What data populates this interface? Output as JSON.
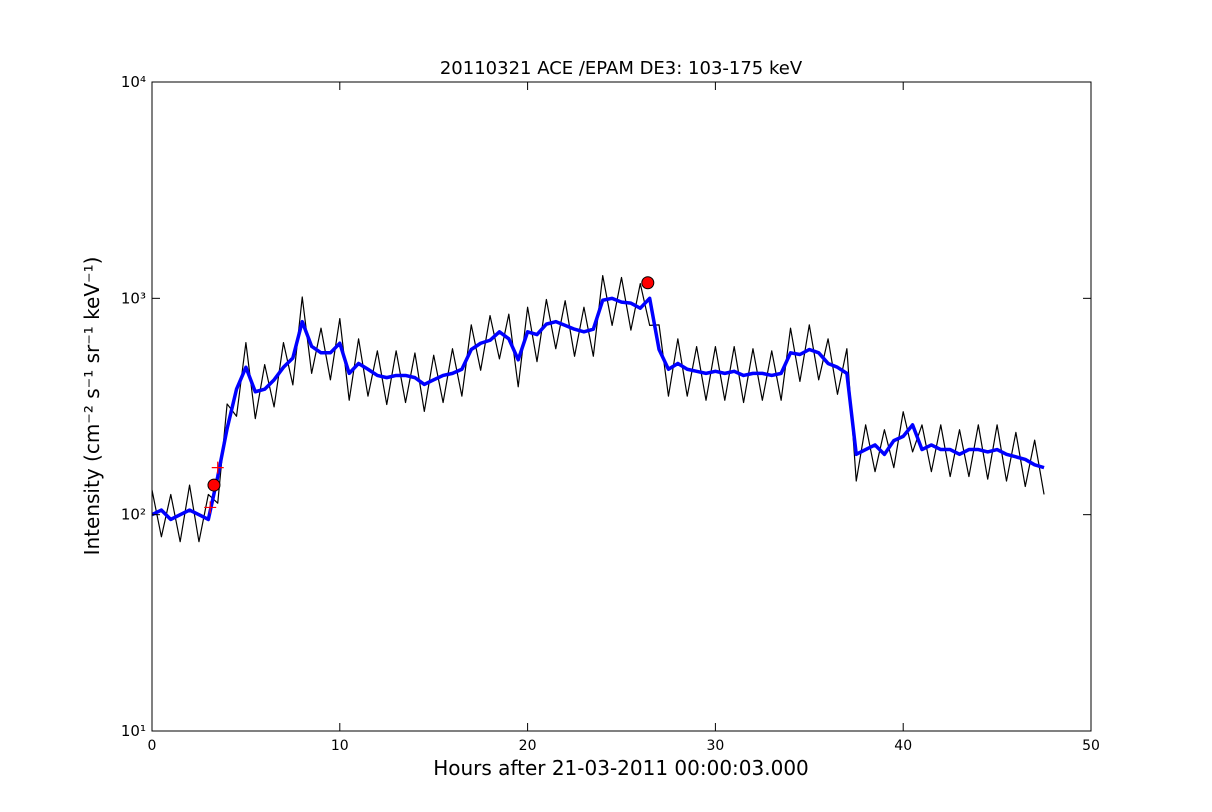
{
  "chart_data": {
    "type": "line",
    "title": "20110321 ACE /EPAM DE3: 103-175 keV",
    "xlabel": "Hours after 21-03-2011 00:00:03.000",
    "ylabel": "Intensity (cm⁻² s⁻¹ sr⁻¹ keV⁻¹)",
    "log_y": true,
    "xlim": [
      0,
      50
    ],
    "ylim": [
      10,
      10000
    ],
    "xticks": [
      0,
      10,
      20,
      30,
      40,
      50
    ],
    "yticks": [
      {
        "value": 10,
        "label": "10¹"
      },
      {
        "value": 100,
        "label": "10²"
      },
      {
        "value": 1000,
        "label": "10³"
      },
      {
        "value": 10000,
        "label": "10⁴"
      }
    ],
    "x": [
      0,
      0.5,
      1,
      1.5,
      2,
      2.5,
      3,
      3.5,
      4,
      4.5,
      5,
      5.5,
      6,
      6.5,
      7,
      7.5,
      8,
      8.5,
      9,
      9.5,
      10,
      10.5,
      11,
      11.5,
      12,
      12.5,
      13,
      13.5,
      14,
      14.5,
      15,
      15.5,
      16,
      16.5,
      17,
      17.5,
      18,
      18.5,
      19,
      19.5,
      20,
      20.5,
      21,
      21.5,
      22,
      22.5,
      23,
      23.5,
      24,
      24.5,
      25,
      25.5,
      26,
      26.5,
      27,
      27.5,
      28,
      28.5,
      29,
      29.5,
      30,
      30.5,
      31,
      31.5,
      32,
      32.5,
      33,
      33.5,
      34,
      34.5,
      35,
      35.5,
      36,
      36.5,
      37,
      37.5,
      38,
      38.5,
      39,
      39.5,
      40,
      40.5,
      41,
      41.5,
      42,
      42.5,
      43,
      43.5,
      44,
      44.5,
      45,
      45.5,
      46,
      46.5,
      47,
      47.5
    ],
    "series": [
      {
        "color": "#000000",
        "width": 1.2,
        "values": [
          130,
          79,
          124,
          75,
          137,
          75,
          124,
          113,
          325,
          285,
          624,
          278,
          494,
          315,
          624,
          398,
          1014,
          450,
          728,
          420,
          806,
          338,
          650,
          353,
          572,
          323,
          572,
          330,
          559,
          300,
          546,
          330,
          585,
          353,
          754,
          465,
          832,
          525,
          845,
          390,
          910,
          510,
          988,
          585,
          975,
          540,
          910,
          540,
          1274,
          750,
          1248,
          713,
          1170,
          750,
          754,
          353,
          650,
          353,
          598,
          338,
          598,
          338,
          598,
          330,
          585,
          338,
          572,
          338,
          728,
          413,
          754,
          420,
          650,
          360,
          585,
          143,
          260,
          158,
          247,
          165,
          299,
          195,
          260,
          158,
          260,
          150,
          247,
          150,
          260,
          146,
          260,
          143,
          240,
          135,
          221,
          124
        ]
      },
      {
        "color": "#0000ff",
        "width": 3.5,
        "values": [
          100,
          105,
          95,
          100,
          105,
          100,
          95,
          150,
          250,
          380,
          480,
          370,
          380,
          420,
          480,
          530,
          780,
          600,
          560,
          560,
          620,
          450,
          500,
          470,
          440,
          430,
          440,
          440,
          430,
          400,
          420,
          440,
          450,
          470,
          580,
          620,
          640,
          700,
          650,
          520,
          700,
          680,
          760,
          780,
          750,
          720,
          700,
          720,
          980,
          1000,
          960,
          950,
          900,
          1000,
          580,
          470,
          500,
          470,
          460,
          450,
          460,
          450,
          460,
          440,
          450,
          450,
          440,
          450,
          560,
          550,
          580,
          560,
          500,
          480,
          450,
          190,
          200,
          210,
          190,
          220,
          230,
          260,
          200,
          210,
          200,
          200,
          190,
          200,
          200,
          195,
          200,
          190,
          185,
          180,
          170,
          165
        ]
      }
    ],
    "markers": [
      {
        "marker": "plus",
        "color": "#ff0000",
        "x": [
          3.5,
          3.1
        ],
        "values": [
          165,
          108
        ]
      },
      {
        "marker": "circle",
        "color": "#ff0000",
        "x": [
          3.3,
          26.4
        ],
        "values": [
          137,
          1180
        ]
      }
    ]
  }
}
